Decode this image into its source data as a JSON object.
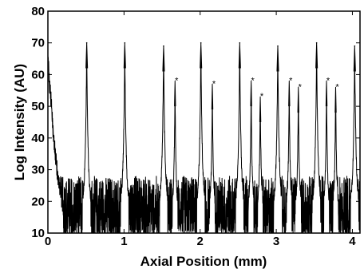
{
  "chart_data": {
    "type": "line",
    "title": "",
    "xlabel": "Axial Position (mm)",
    "ylabel": "Log Intensity (AU)",
    "xlim": [
      0,
      4.1
    ],
    "ylim": [
      10,
      80
    ],
    "xticks": [
      0,
      1,
      2,
      3,
      4
    ],
    "yticks": [
      10,
      20,
      30,
      40,
      50,
      60,
      70,
      80
    ],
    "grid": false,
    "legend": "none",
    "line_color": "#000000",
    "noise_floor": {
      "min": 10,
      "max": 28
    },
    "initial_decay": [
      {
        "x": 0.0,
        "y": 70
      },
      {
        "x": 0.02,
        "y": 60
      },
      {
        "x": 0.04,
        "y": 55
      },
      {
        "x": 0.06,
        "y": 48
      },
      {
        "x": 0.09,
        "y": 40
      },
      {
        "x": 0.12,
        "y": 33
      },
      {
        "x": 0.16,
        "y": 26
      },
      {
        "x": 0.2,
        "y": 22
      }
    ],
    "main_peaks": [
      {
        "x": 0.51,
        "y": 70
      },
      {
        "x": 1.01,
        "y": 70
      },
      {
        "x": 1.52,
        "y": 69
      },
      {
        "x": 2.01,
        "y": 70
      },
      {
        "x": 2.52,
        "y": 70
      },
      {
        "x": 3.02,
        "y": 69
      },
      {
        "x": 3.53,
        "y": 70
      },
      {
        "x": 4.03,
        "y": 69
      }
    ],
    "marked_peaks": [
      {
        "x": 1.67,
        "y": 58,
        "label": "*"
      },
      {
        "x": 2.16,
        "y": 57,
        "label": "*"
      },
      {
        "x": 2.67,
        "y": 58,
        "label": "*"
      },
      {
        "x": 2.79,
        "y": 53,
        "label": "*"
      },
      {
        "x": 3.17,
        "y": 58,
        "label": "*"
      },
      {
        "x": 3.29,
        "y": 56,
        "label": "*"
      },
      {
        "x": 3.66,
        "y": 58,
        "label": "*"
      },
      {
        "x": 3.78,
        "y": 56,
        "label": "*"
      }
    ]
  }
}
